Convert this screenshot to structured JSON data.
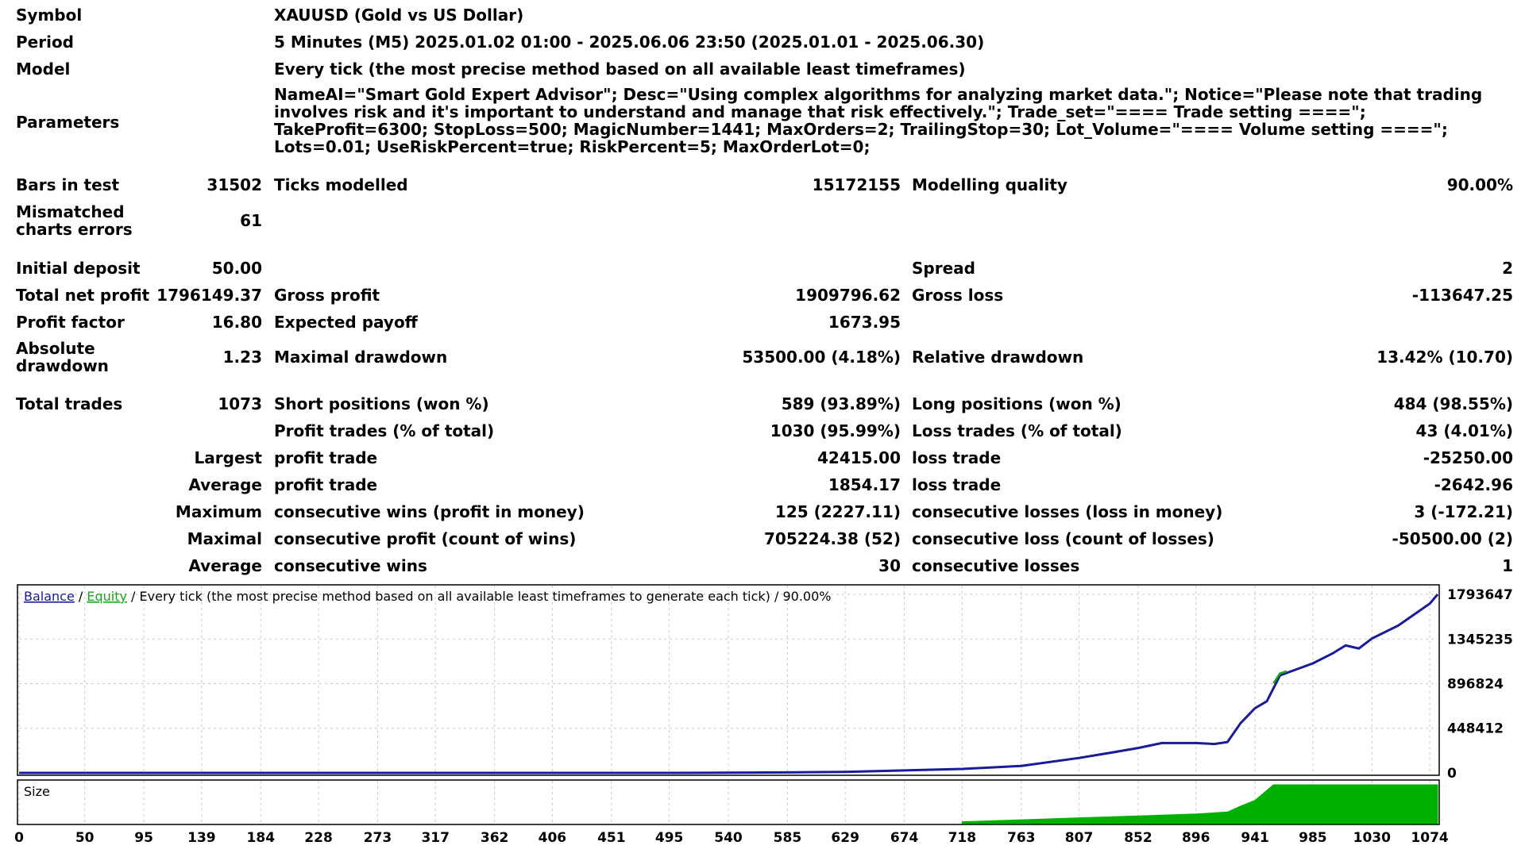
{
  "report": {
    "symbol": {
      "label": "Symbol",
      "value": "XAUUSD (Gold vs US Dollar)"
    },
    "period": {
      "label": "Period",
      "value": "5 Minutes (M5) 2025.01.02 01:00 - 2025.06.06 23:50 (2025.01.01 - 2025.06.30)"
    },
    "model": {
      "label": "Model",
      "value": "Every tick (the most precise method based on all available least timeframes)"
    },
    "parameters": {
      "label": "Parameters",
      "value": "NameAI=\"Smart Gold Expert Advisor\"; Desc=\"Using complex algorithms for analyzing market data.\"; Notice=\"Please note that trading involves risk and it's important to understand and manage that risk effectively.\"; Trade_set=\"==== Trade setting ====\"; TakeProfit=6300; StopLoss=500; MagicNumber=1441; MaxOrders=2; TrailingStop=30; Lot_Volume=\"==== Volume setting ====\"; Lots=0.01; UseRiskPercent=true; RiskPercent=5; MaxOrderLot=0;"
    },
    "bars_in_test": {
      "label": "Bars in test",
      "value": "31502"
    },
    "ticks_modelled": {
      "label": "Ticks modelled",
      "value": "15172155"
    },
    "modelling_quality": {
      "label": "Modelling quality",
      "value": "90.00%"
    },
    "mismatched": {
      "label_1": "Mismatched",
      "label_2": "charts errors",
      "value": "61"
    },
    "initial_deposit": {
      "label": "Initial deposit",
      "value": "50.00"
    },
    "spread": {
      "label": "Spread",
      "value": "2"
    },
    "total_net_profit": {
      "label": "Total net profit",
      "value": "1796149.37"
    },
    "gross_profit": {
      "label": "Gross profit",
      "value": "1909796.62"
    },
    "gross_loss": {
      "label": "Gross loss",
      "value": "-113647.25"
    },
    "profit_factor": {
      "label": "Profit factor",
      "value": "16.80"
    },
    "expected_payoff": {
      "label": "Expected payoff",
      "value": "1673.95"
    },
    "absolute_drawdown": {
      "label_1": "Absolute",
      "label_2": "drawdown",
      "value": "1.23"
    },
    "maximal_drawdown": {
      "label": "Maximal drawdown",
      "value": "53500.00 (4.18%)"
    },
    "relative_drawdown": {
      "label": "Relative drawdown",
      "value": "13.42% (10.70)"
    },
    "total_trades": {
      "label": "Total trades",
      "value": "1073"
    },
    "short_positions": {
      "label": "Short positions (won %)",
      "value": "589 (93.89%)"
    },
    "long_positions": {
      "label": "Long positions (won %)",
      "value": "484 (98.55%)"
    },
    "profit_trades": {
      "label": "Profit trades (% of total)",
      "value": "1030 (95.99%)"
    },
    "loss_trades": {
      "label": "Loss trades (% of total)",
      "value": "43 (4.01%)"
    },
    "largest": {
      "label": "Largest",
      "profit_label": "profit trade",
      "profit_value": "42415.00",
      "loss_label": "loss trade",
      "loss_value": "-25250.00"
    },
    "average": {
      "label": "Average",
      "profit_label": "profit trade",
      "profit_value": "1854.17",
      "loss_label": "loss trade",
      "loss_value": "-2642.96"
    },
    "maximum": {
      "label": "Maximum",
      "wins_label": "consecutive wins (profit in money)",
      "wins_value": "125 (2227.11)",
      "losses_label": "consecutive losses (loss in money)",
      "losses_value": "3 (-172.21)"
    },
    "maximal": {
      "label": "Maximal",
      "profit_label": "consecutive profit (count of wins)",
      "profit_value": "705224.38 (52)",
      "loss_label": "consecutive loss (count of losses)",
      "loss_value": "-50500.00 (2)"
    },
    "average_consecutive": {
      "label": "Average",
      "wins_label": "consecutive wins",
      "wins_value": "30",
      "losses_label": "consecutive losses",
      "losses_value": "1"
    }
  },
  "chart_caption": {
    "balance": "Balance",
    "sep1": " / ",
    "equity": "Equity",
    "rest": " / Every tick (the most precise method based on all available least timeframes to generate each tick) / 90.00%"
  },
  "colors": {
    "balance": "#1a1a9c",
    "equity": "#16a816",
    "size": "#00b000",
    "grid": "#c8c8c8"
  },
  "chart_data": [
    {
      "type": "line",
      "title": "",
      "series": [
        {
          "name": "Balance",
          "color": "#1a1a9c",
          "x": [
            0,
            100,
            200,
            300,
            400,
            500,
            585,
            629,
            674,
            718,
            763,
            807,
            830,
            852,
            870,
            896,
            910,
            920,
            930,
            941,
            950,
            960,
            985,
            1000,
            1010,
            1020,
            1030,
            1050,
            1074,
            1080
          ],
          "y": [
            50,
            80,
            120,
            160,
            200,
            250,
            5000,
            10000,
            25000,
            40000,
            70000,
            150000,
            200000,
            250000,
            300000,
            300000,
            290000,
            310000,
            500000,
            650000,
            720000,
            980000,
            1100000,
            1200000,
            1280000,
            1250000,
            1350000,
            1480000,
            1700000,
            1793647
          ]
        },
        {
          "name": "Equity",
          "color": "#16a816",
          "x": [
            955,
            960,
            965
          ],
          "y": [
            900000,
            1000000,
            1020000
          ]
        }
      ],
      "y_ticks": [
        "1793647",
        "1345235",
        "896824",
        "448412",
        "0"
      ],
      "ylim": [
        0,
        1793647
      ],
      "xlim": [
        0,
        1080
      ],
      "grid": true
    },
    {
      "type": "area",
      "title": "Size",
      "series": [
        {
          "name": "Size",
          "color": "#00b000",
          "x": [
            718,
            763,
            807,
            852,
            896,
            920,
            930,
            941,
            955,
            1080
          ],
          "y": [
            0.05,
            0.1,
            0.15,
            0.2,
            0.25,
            0.3,
            0.45,
            0.6,
            1.0,
            1.0
          ]
        }
      ],
      "x_ticks": [
        "0",
        "50",
        "95",
        "139",
        "184",
        "228",
        "273",
        "317",
        "362",
        "406",
        "451",
        "495",
        "540",
        "585",
        "629",
        "674",
        "718",
        "763",
        "807",
        "852",
        "896",
        "941",
        "985",
        "1030",
        "1074"
      ],
      "grid": true
    }
  ]
}
